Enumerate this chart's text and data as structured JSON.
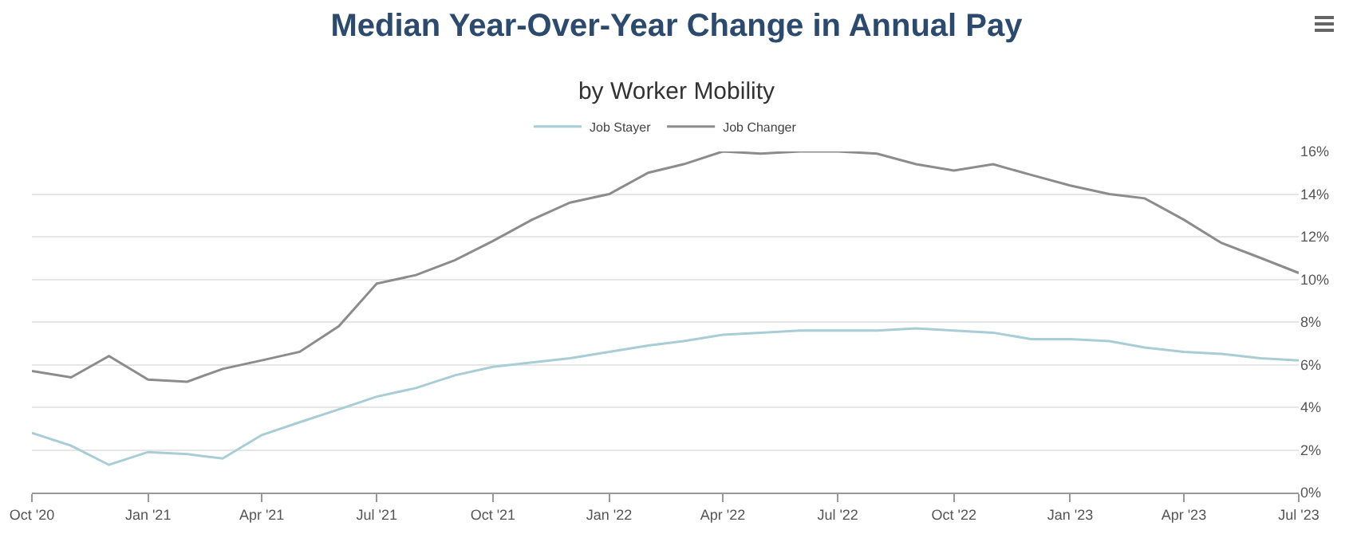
{
  "chart_data": {
    "type": "line",
    "title": "Median Year-Over-Year Change in Annual Pay",
    "subtitle": "by Worker Mobility",
    "x": [
      "2020-10",
      "2020-11",
      "2020-12",
      "2021-01",
      "2021-02",
      "2021-03",
      "2021-04",
      "2021-05",
      "2021-06",
      "2021-07",
      "2021-08",
      "2021-09",
      "2021-10",
      "2021-11",
      "2021-12",
      "2022-01",
      "2022-02",
      "2022-03",
      "2022-04",
      "2022-05",
      "2022-06",
      "2022-07",
      "2022-08",
      "2022-09",
      "2022-10",
      "2022-11",
      "2022-12",
      "2023-01",
      "2023-02",
      "2023-03",
      "2023-04",
      "2023-05",
      "2023-06",
      "2023-07"
    ],
    "series": [
      {
        "name": "Job Stayer",
        "color": "#a9cdd6",
        "values": [
          2.8,
          2.2,
          1.3,
          1.9,
          1.8,
          1.6,
          2.7,
          3.3,
          3.9,
          4.5,
          4.9,
          5.5,
          5.9,
          6.1,
          6.3,
          6.6,
          6.9,
          7.1,
          7.4,
          7.5,
          7.6,
          7.6,
          7.6,
          7.7,
          7.6,
          7.5,
          7.2,
          7.2,
          7.1,
          6.8,
          6.6,
          6.5,
          6.3,
          6.2
        ]
      },
      {
        "name": "Job Changer",
        "color": "#8c8c8c",
        "values": [
          5.7,
          5.4,
          6.4,
          5.3,
          5.2,
          5.8,
          6.2,
          6.6,
          7.8,
          9.8,
          10.2,
          10.9,
          11.8,
          12.8,
          13.6,
          14.0,
          15.0,
          15.4,
          16.0,
          15.9,
          16.0,
          16.0,
          15.9,
          15.4,
          15.1,
          15.4,
          14.9,
          14.4,
          14.0,
          13.8,
          12.8,
          11.7,
          11.0,
          10.3
        ]
      }
    ],
    "xlim": [
      "2020-10",
      "2023-07"
    ],
    "xticks": [
      {
        "value": "2020-10",
        "label": "Oct '20"
      },
      {
        "value": "2021-01",
        "label": "Jan '21"
      },
      {
        "value": "2021-04",
        "label": "Apr '21"
      },
      {
        "value": "2021-07",
        "label": "Jul '21"
      },
      {
        "value": "2021-10",
        "label": "Oct '21"
      },
      {
        "value": "2022-01",
        "label": "Jan '22"
      },
      {
        "value": "2022-04",
        "label": "Apr '22"
      },
      {
        "value": "2022-07",
        "label": "Jul '22"
      },
      {
        "value": "2022-10",
        "label": "Oct '22"
      },
      {
        "value": "2023-01",
        "label": "Jan '23"
      },
      {
        "value": "2023-04",
        "label": "Apr '23"
      },
      {
        "value": "2023-07",
        "label": "Jul '23"
      }
    ],
    "ylim": [
      0,
      16
    ],
    "yticks": [
      {
        "value": 0,
        "label": "0%"
      },
      {
        "value": 2,
        "label": "2%"
      },
      {
        "value": 4,
        "label": "4%"
      },
      {
        "value": 6,
        "label": "6%"
      },
      {
        "value": 8,
        "label": "8%"
      },
      {
        "value": 10,
        "label": "10%"
      },
      {
        "value": 12,
        "label": "12%"
      },
      {
        "value": 14,
        "label": "14%"
      },
      {
        "value": 16,
        "label": "16%"
      }
    ],
    "grid": "y",
    "legend": "top",
    "marker": "none",
    "line_style": "solid"
  }
}
